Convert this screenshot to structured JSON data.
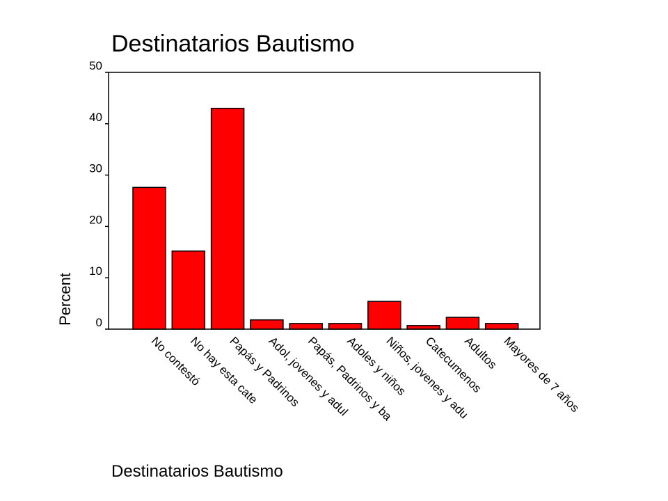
{
  "chart_data": {
    "type": "bar",
    "title": "Destinatarios Bautismo",
    "x_label": "Destinatarios Bautismo",
    "y_label": "Percent",
    "categories": [
      "No contestó",
      "No hay esta cate",
      "Papás y Padrinos",
      "Adol, jovenes y adul",
      "Papás, Padrinos y ba",
      "Adoles y niños",
      "Niños, jovenes y adu",
      "Catecumenos",
      "Adultos",
      "Mayores de 7 años"
    ],
    "values": [
      27.6,
      15.2,
      43.0,
      1.8,
      1.1,
      1.1,
      5.4,
      0.7,
      2.3,
      1.1
    ],
    "color": "#ff0000",
    "ylim": [
      0,
      50
    ],
    "yticks": [
      0,
      10,
      20,
      30,
      40,
      50
    ],
    "grid": false
  }
}
